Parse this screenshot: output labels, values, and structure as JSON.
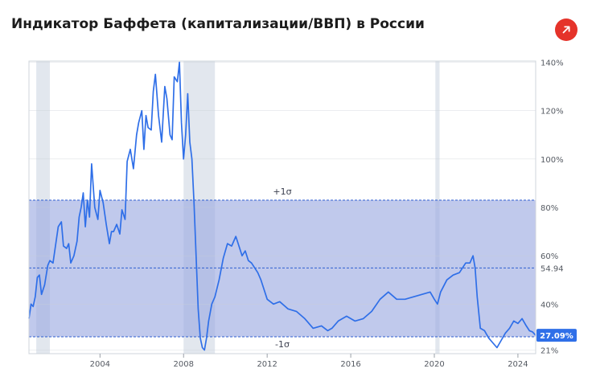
{
  "title": "Индикатор Баффета (капитализации/ВВП) в России",
  "open_icon": "arrow-up-right-icon",
  "colors": {
    "line": "#2f6fe8",
    "band": "#9aa8e0",
    "recession": "#e2e7ee",
    "button": "#e5332a",
    "badge": "#2f6fe8"
  },
  "chart_data": {
    "type": "line",
    "title": "Индикатор Баффета (капитализации/ВВП) в России",
    "xlabel": "",
    "ylabel": "",
    "xlim": [
      2000.6,
      2024.85
    ],
    "ylim": [
      19.5,
      140.5
    ],
    "x_ticks": [
      {
        "x": 2004,
        "label": "2004"
      },
      {
        "x": 2008,
        "label": "2008"
      },
      {
        "x": 2012,
        "label": "2012"
      },
      {
        "x": 2016,
        "label": "2016"
      },
      {
        "x": 2020,
        "label": "2020"
      },
      {
        "x": 2024,
        "label": "2024"
      }
    ],
    "y_ticks": [
      {
        "y": 140,
        "label": "140%"
      },
      {
        "y": 120,
        "label": "120%"
      },
      {
        "y": 100,
        "label": "100%"
      },
      {
        "y": 80,
        "label": "80%"
      },
      {
        "y": 60,
        "label": "60%"
      },
      {
        "y": 40,
        "label": "40%"
      },
      {
        "y": 21,
        "label": "21%"
      }
    ],
    "mean": {
      "value": 54.94,
      "label": "54.94"
    },
    "upper_band": {
      "value": 83,
      "label": "+1σ"
    },
    "lower_band": {
      "value": 26.5,
      "label": "-1σ"
    },
    "current": {
      "value": 27.09,
      "label": "27.09%"
    },
    "recessions": [
      [
        2000.95,
        2001.6
      ],
      [
        2008.0,
        2009.5
      ],
      [
        2020.05,
        2020.25
      ]
    ],
    "grid": true,
    "series": [
      {
        "x": [
          2000.6,
          2000.7,
          2000.8,
          2000.9,
          2001.0,
          2001.1,
          2001.2,
          2001.35,
          2001.5,
          2001.6,
          2001.75,
          2001.9,
          2002.0,
          2002.15,
          2002.25,
          2002.4,
          2002.5,
          2002.6,
          2002.75,
          2002.9,
          2003.0,
          2003.1,
          2003.2,
          2003.3,
          2003.4,
          2003.5,
          2003.6,
          2003.75,
          2003.9,
          2004.0,
          2004.15,
          2004.3,
          2004.45,
          2004.55,
          2004.65,
          2004.8,
          2004.95,
          2005.05,
          2005.2,
          2005.3,
          2005.45,
          2005.6,
          2005.75,
          2005.85,
          2006.0,
          2006.1,
          2006.2,
          2006.3,
          2006.45,
          2006.55,
          2006.65,
          2006.8,
          2006.95,
          2007.1,
          2007.2,
          2007.35,
          2007.45,
          2007.55,
          2007.7,
          2007.8,
          2007.9,
          2008.0,
          2008.1,
          2008.2,
          2008.3,
          2008.4,
          2008.5,
          2008.6,
          2008.7,
          2008.8,
          2008.9,
          2009.0,
          2009.1,
          2009.2,
          2009.35,
          2009.5,
          2009.7,
          2009.9,
          2010.1,
          2010.3,
          2010.5,
          2010.65,
          2010.8,
          2010.95,
          2011.1,
          2011.25,
          2011.4,
          2011.55,
          2011.7,
          2011.85,
          2012.0,
          2012.3,
          2012.6,
          2013.0,
          2013.4,
          2013.8,
          2014.2,
          2014.6,
          2014.9,
          2015.1,
          2015.4,
          2015.8,
          2016.2,
          2016.6,
          2017.0,
          2017.4,
          2017.8,
          2018.2,
          2018.6,
          2019.0,
          2019.4,
          2019.8,
          2020.0,
          2020.15,
          2020.3,
          2020.6,
          2020.9,
          2021.2,
          2021.5,
          2021.7,
          2021.85,
          2021.95,
          2022.05,
          2022.2,
          2022.4,
          2022.6,
          2022.8,
          2023.0,
          2023.2,
          2023.4,
          2023.6,
          2023.8,
          2024.0,
          2024.2,
          2024.4,
          2024.55,
          2024.7,
          2024.85
        ],
        "values": [
          34,
          40,
          39,
          43,
          51,
          52,
          44,
          48,
          56,
          58,
          57,
          66,
          72,
          74,
          64,
          63,
          65,
          57,
          60,
          66,
          76,
          80,
          86,
          72,
          83,
          76,
          98,
          80,
          75,
          87,
          82,
          73,
          65,
          70,
          70,
          73,
          69,
          79,
          75,
          99,
          104,
          96,
          110,
          115,
          120,
          104,
          118,
          113,
          112,
          128,
          135,
          118,
          107,
          130,
          125,
          110,
          108,
          134,
          132,
          140,
          115,
          100,
          110,
          127,
          107,
          100,
          82,
          60,
          38,
          26,
          22,
          21,
          26,
          33,
          40,
          43,
          50,
          59,
          65,
          64,
          68,
          64,
          60,
          62,
          58,
          57,
          55,
          53,
          50,
          46,
          42,
          40,
          41,
          38,
          37,
          34,
          30,
          31,
          29,
          30,
          33,
          35,
          33,
          34,
          37,
          42,
          45,
          42,
          42,
          43,
          44,
          45,
          42,
          40,
          45,
          50,
          52,
          53,
          57,
          57,
          60,
          55,
          43,
          30,
          29,
          26,
          24,
          22,
          25,
          28,
          30,
          33,
          32,
          34,
          31,
          29,
          28.5,
          27.09
        ]
      }
    ]
  }
}
